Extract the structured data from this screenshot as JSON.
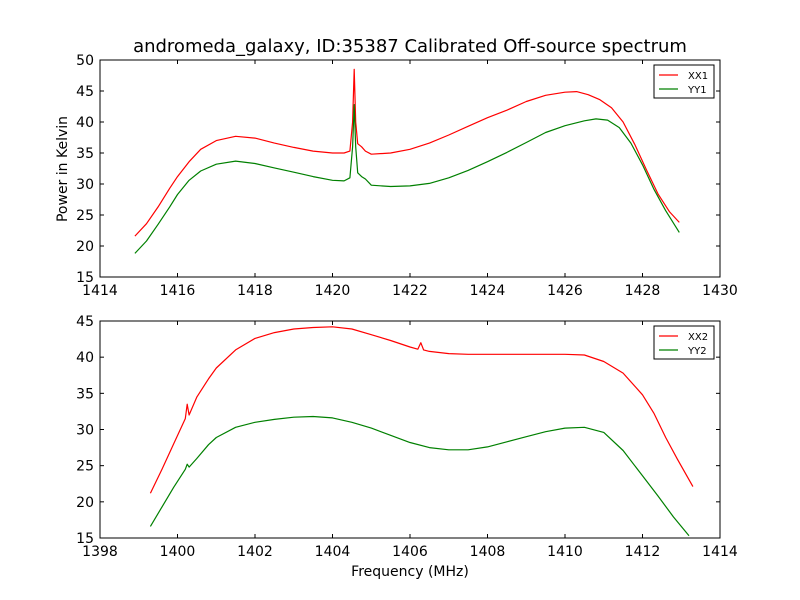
{
  "title": "andromeda_galaxy, ID:35387 Calibrated Off-source spectrum",
  "ylabel": "Power in Kelvin",
  "xlabel": "Frequency (MHz)",
  "colors": {
    "series1": "#ff0000",
    "series2": "#008000",
    "axes": "#000000"
  },
  "chart_data": [
    {
      "type": "line",
      "xlim": [
        1414,
        1430
      ],
      "ylim": [
        15,
        50
      ],
      "xticks": [
        1414,
        1416,
        1418,
        1420,
        1422,
        1424,
        1426,
        1428,
        1430
      ],
      "yticks": [
        15,
        20,
        25,
        30,
        35,
        40,
        45,
        50
      ],
      "legend": "top-right",
      "series": [
        {
          "name": "XX1",
          "color": "#ff0000",
          "x": [
            1414.9,
            1415.2,
            1415.5,
            1415.8,
            1416.0,
            1416.3,
            1416.6,
            1417.0,
            1417.5,
            1418.0,
            1418.5,
            1419.0,
            1419.5,
            1420.0,
            1420.3,
            1420.45,
            1420.52,
            1420.56,
            1420.6,
            1420.65,
            1420.75,
            1420.85,
            1421.0,
            1421.5,
            1422.0,
            1422.5,
            1423.0,
            1423.5,
            1424.0,
            1424.5,
            1425.0,
            1425.5,
            1426.0,
            1426.3,
            1426.6,
            1426.9,
            1427.2,
            1427.5,
            1427.8,
            1428.1,
            1428.4,
            1428.7,
            1428.95
          ],
          "y": [
            21.6,
            23.6,
            26.3,
            29.3,
            31.2,
            33.6,
            35.6,
            37.0,
            37.7,
            37.4,
            36.6,
            35.9,
            35.3,
            35.0,
            35.0,
            35.3,
            40.0,
            48.5,
            40.0,
            36.5,
            36.0,
            35.3,
            34.8,
            35.0,
            35.6,
            36.6,
            37.9,
            39.3,
            40.7,
            41.9,
            43.3,
            44.3,
            44.8,
            44.9,
            44.4,
            43.6,
            42.3,
            40.0,
            36.4,
            32.3,
            28.4,
            25.5,
            23.8
          ]
        },
        {
          "name": "YY1",
          "color": "#008000",
          "x": [
            1414.9,
            1415.2,
            1415.5,
            1415.8,
            1416.0,
            1416.3,
            1416.6,
            1417.0,
            1417.5,
            1418.0,
            1418.5,
            1419.0,
            1419.5,
            1420.0,
            1420.3,
            1420.45,
            1420.52,
            1420.56,
            1420.6,
            1420.65,
            1420.75,
            1420.85,
            1421.0,
            1421.5,
            1422.0,
            1422.5,
            1423.0,
            1423.5,
            1424.0,
            1424.5,
            1425.0,
            1425.5,
            1426.0,
            1426.5,
            1426.8,
            1427.1,
            1427.4,
            1427.7,
            1428.0,
            1428.3,
            1428.6,
            1428.95
          ],
          "y": [
            18.8,
            20.8,
            23.5,
            26.3,
            28.3,
            30.6,
            32.1,
            33.2,
            33.7,
            33.3,
            32.6,
            31.9,
            31.2,
            30.6,
            30.5,
            31.0,
            36.0,
            42.8,
            36.0,
            31.8,
            31.2,
            30.8,
            29.8,
            29.6,
            29.7,
            30.1,
            31.0,
            32.2,
            33.6,
            35.1,
            36.7,
            38.3,
            39.4,
            40.2,
            40.5,
            40.3,
            39.1,
            36.6,
            33.1,
            29.1,
            25.7,
            22.2
          ]
        }
      ]
    },
    {
      "type": "line",
      "xlim": [
        1398,
        1414
      ],
      "ylim": [
        15,
        45
      ],
      "xticks": [
        1398,
        1400,
        1402,
        1404,
        1406,
        1408,
        1410,
        1412,
        1414
      ],
      "yticks": [
        15,
        20,
        25,
        30,
        35,
        40,
        45
      ],
      "legend": "top-right",
      "series": [
        {
          "name": "XX2",
          "color": "#ff0000",
          "x": [
            1399.3,
            1399.6,
            1399.9,
            1400.2,
            1400.25,
            1400.3,
            1400.5,
            1400.8,
            1401.0,
            1401.5,
            1402.0,
            1402.5,
            1403.0,
            1403.5,
            1404.0,
            1404.5,
            1405.0,
            1405.5,
            1406.0,
            1406.2,
            1406.28,
            1406.35,
            1406.5,
            1407.0,
            1407.5,
            1408.0,
            1408.5,
            1409.0,
            1409.5,
            1410.0,
            1410.5,
            1411.0,
            1411.5,
            1412.0,
            1412.3,
            1412.6,
            1412.9,
            1413.3
          ],
          "y": [
            21.2,
            24.5,
            28.0,
            31.5,
            33.5,
            32.0,
            34.5,
            37.0,
            38.5,
            41.0,
            42.6,
            43.4,
            43.9,
            44.1,
            44.2,
            43.9,
            43.1,
            42.3,
            41.4,
            41.1,
            42.0,
            41.0,
            40.8,
            40.5,
            40.4,
            40.4,
            40.4,
            40.4,
            40.4,
            40.4,
            40.3,
            39.4,
            37.8,
            34.8,
            32.2,
            28.9,
            25.9,
            22.1
          ]
        },
        {
          "name": "YY2",
          "color": "#008000",
          "x": [
            1399.3,
            1399.6,
            1399.9,
            1400.2,
            1400.25,
            1400.3,
            1400.5,
            1400.8,
            1401.0,
            1401.5,
            1402.0,
            1402.5,
            1403.0,
            1403.5,
            1404.0,
            1404.5,
            1405.0,
            1405.5,
            1406.0,
            1406.5,
            1407.0,
            1407.5,
            1408.0,
            1408.5,
            1409.0,
            1409.5,
            1410.0,
            1410.5,
            1411.0,
            1411.5,
            1412.0,
            1412.4,
            1412.8,
            1413.2
          ],
          "y": [
            16.6,
            19.3,
            22.0,
            24.5,
            25.2,
            24.8,
            26.0,
            27.9,
            28.9,
            30.3,
            31.0,
            31.4,
            31.7,
            31.8,
            31.6,
            31.0,
            30.2,
            29.2,
            28.2,
            27.5,
            27.2,
            27.2,
            27.6,
            28.3,
            29.0,
            29.7,
            30.2,
            30.3,
            29.6,
            27.1,
            23.6,
            20.8,
            17.9,
            15.3
          ]
        }
      ]
    }
  ]
}
